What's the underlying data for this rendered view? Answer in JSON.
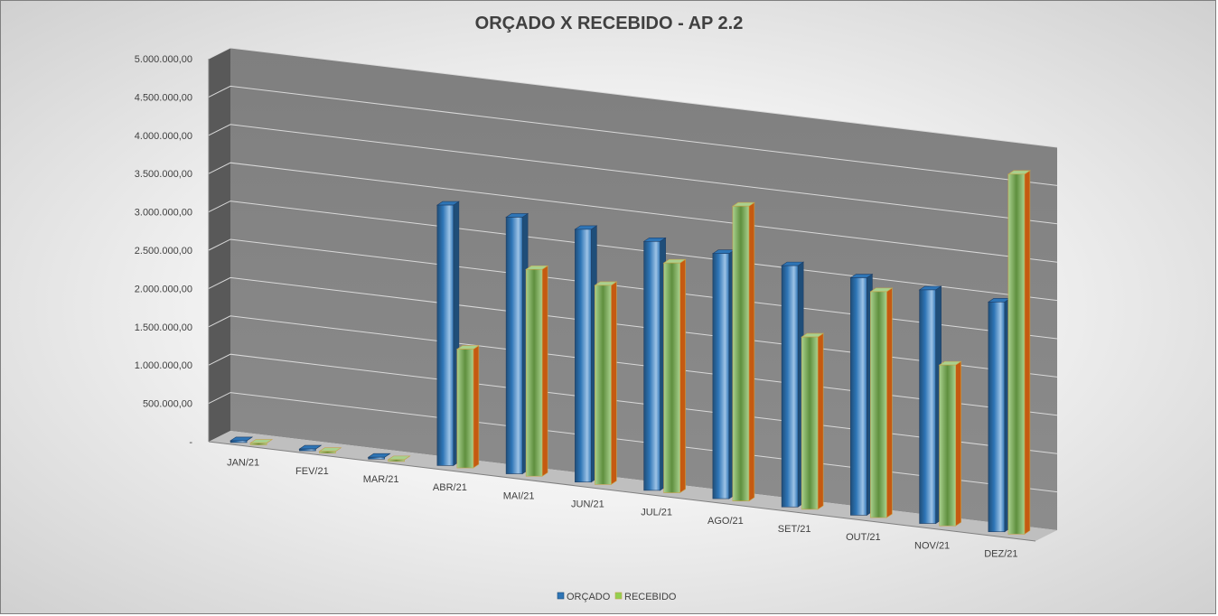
{
  "chart_data": {
    "type": "bar",
    "title": "ORÇADO X RECEBIDO - AP 2.2",
    "categories": [
      "JAN/21",
      "FEV/21",
      "MAR/21",
      "ABR/21",
      "MAI/21",
      "JUN/21",
      "JUL/21",
      "AGO/21",
      "SET/21",
      "OUT/21",
      "NOV/21",
      "DEZ/21"
    ],
    "series": [
      {
        "name": "ORÇADO",
        "color": "#2e75b6",
        "values": [
          0,
          0,
          0,
          3400000,
          3350000,
          3300000,
          3250000,
          3200000,
          3150000,
          3100000,
          3050000,
          3000000
        ]
      },
      {
        "name": "RECEBIDO",
        "color": "#92d050",
        "values": [
          0,
          0,
          0,
          1550000,
          2700000,
          2600000,
          3000000,
          3850000,
          2250000,
          2950000,
          2100000,
          4700000
        ]
      }
    ],
    "y_ticks": [
      "-",
      "500.000,00",
      "1.000.000,00",
      "1.500.000,00",
      "2.000.000,00",
      "2.500.000,00",
      "3.000.000,00",
      "3.500.000,00",
      "4.000.000,00",
      "4.500.000,00",
      "5.000.000,00"
    ],
    "ylim": [
      0,
      5000000
    ],
    "grid": true,
    "legend": "bottom"
  }
}
